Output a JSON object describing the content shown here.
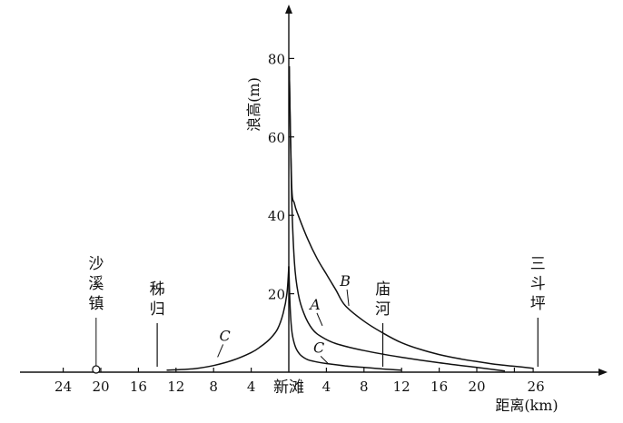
{
  "chart_data": {
    "type": "line",
    "xlabel": "距离(km)",
    "ylabel": "浪高(m)",
    "origin_label": "新滩",
    "x_ticks_left": [
      "24",
      "20",
      "16",
      "12",
      "8",
      "4"
    ],
    "x_ticks_right": [
      "4",
      "8",
      "12",
      "16",
      "20",
      "26"
    ],
    "y_ticks": [
      "20",
      "40",
      "60",
      "80"
    ],
    "xlim": [
      -28,
      30
    ],
    "ylim": [
      0,
      92
    ],
    "places": [
      {
        "label": [
          "沙",
          "溪",
          "镇"
        ],
        "x": -20.5,
        "marker": "circle"
      },
      {
        "label": [
          "秭",
          "归"
        ],
        "x": -14,
        "marker": "line"
      },
      {
        "label": [
          "庙",
          "河"
        ],
        "x": 10,
        "marker": "line"
      },
      {
        "label": [
          "三",
          "斗",
          "坪"
        ],
        "x": 26.5,
        "marker": "line"
      }
    ],
    "series": [
      {
        "name": "A",
        "label_at": {
          "x": 2.8,
          "y": 16
        },
        "x": [
          0.05,
          0.3,
          0.6,
          1,
          1.6,
          2.5,
          3.5,
          5,
          8,
          12,
          16,
          20,
          23
        ],
        "y": [
          78,
          45,
          28,
          20,
          15,
          11,
          9,
          7.3,
          5.5,
          3.8,
          2.4,
          1.2,
          0.3
        ]
      },
      {
        "name": "B",
        "label_at": {
          "x": 6.0,
          "y": 22
        },
        "x": [
          0.05,
          0.3,
          0.6,
          1,
          2,
          3,
          4,
          5,
          6,
          8,
          10,
          12,
          14,
          16,
          18,
          20,
          22,
          24,
          26
        ],
        "y": [
          78,
          48,
          43,
          40,
          34,
          29,
          25,
          21,
          17,
          13,
          10,
          7.5,
          5.8,
          4.5,
          3.5,
          2.7,
          2,
          1.5,
          1
        ]
      },
      {
        "name": "C",
        "label_at": {
          "x": -6.8,
          "y": 8
        },
        "x": [
          -13,
          -10,
          -8,
          -6,
          -4,
          -3,
          -2,
          -1.2,
          -0.6,
          -0.2,
          0
        ],
        "y": [
          0.5,
          0.9,
          1.7,
          3,
          5,
          6.5,
          8.5,
          11,
          15,
          20,
          27
        ]
      },
      {
        "name": "C",
        "label_at": {
          "x": 3.2,
          "y": 5
        },
        "x": [
          0,
          0.15,
          0.35,
          0.7,
          1.2,
          2,
          3,
          4,
          6,
          8,
          10,
          12
        ],
        "y": [
          27,
          16,
          10,
          6.5,
          4.5,
          3.2,
          2.6,
          2.2,
          1.6,
          1.2,
          0.8,
          0.5
        ]
      }
    ]
  }
}
